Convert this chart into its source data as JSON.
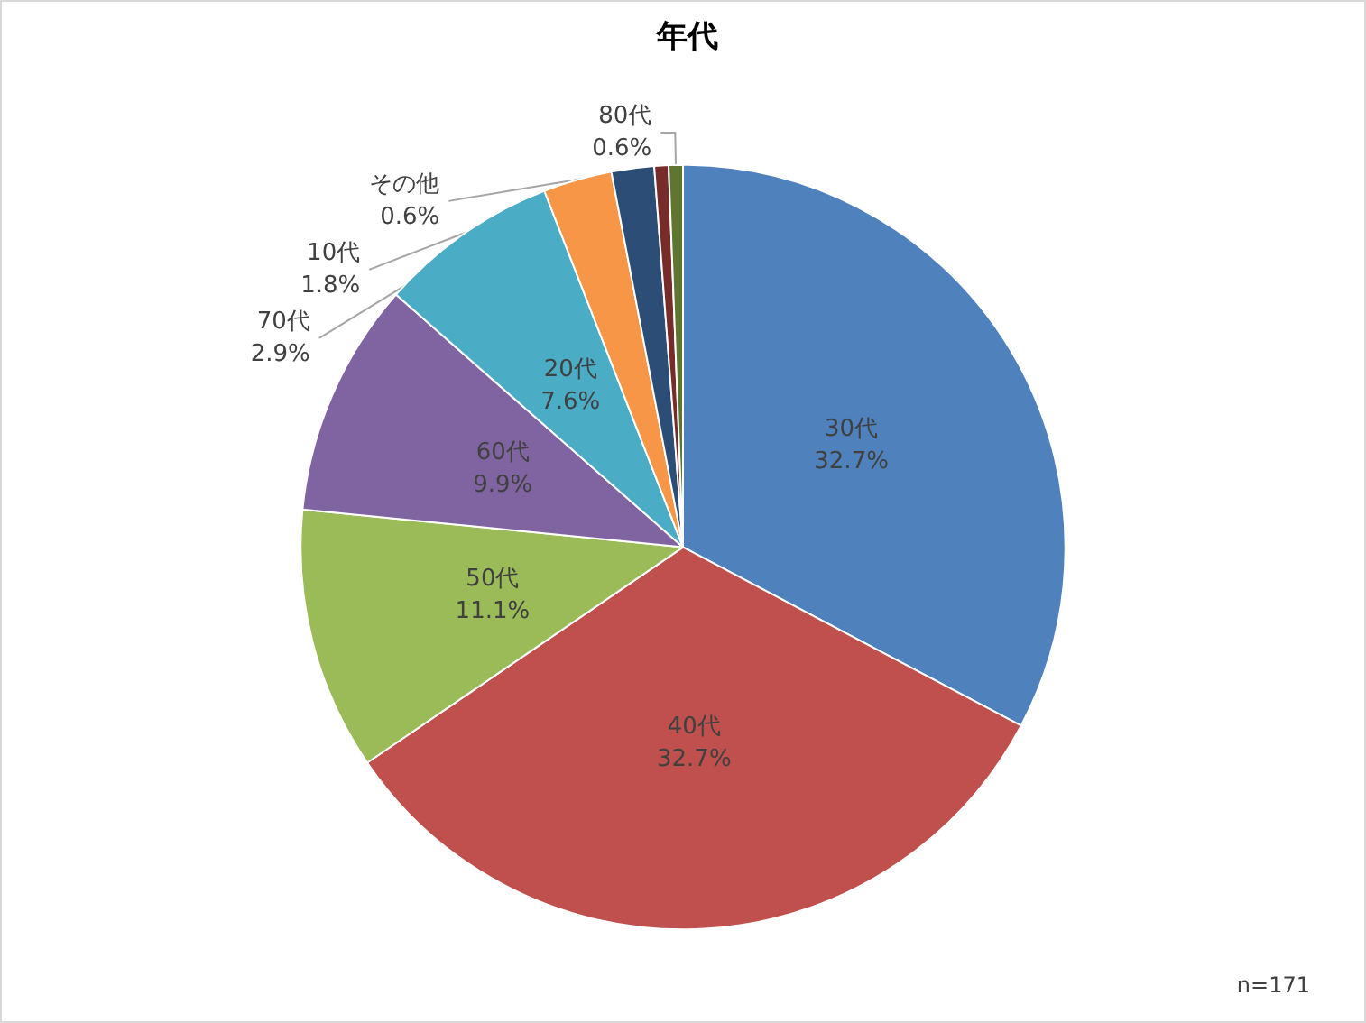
{
  "chart_data": {
    "type": "pie",
    "title": "年代",
    "categories": [
      "30代",
      "40代",
      "50代",
      "60代",
      "20代",
      "70代",
      "10代",
      "その他",
      "80代"
    ],
    "values": [
      32.7,
      32.7,
      11.1,
      9.9,
      7.6,
      2.9,
      1.8,
      0.6,
      0.6
    ],
    "colors": [
      "#4f81bd",
      "#c0504d",
      "#9bbb59",
      "#8064a2",
      "#4bacc6",
      "#f79646",
      "#2c4d75",
      "#772c2a",
      "#5f7530"
    ],
    "value_labels": [
      "32.7%",
      "32.7%",
      "11.1%",
      "9.9%",
      "7.6%",
      "2.9%",
      "1.8%",
      "0.6%",
      "0.6%"
    ],
    "legend": false,
    "annotations": [
      "n=171"
    ]
  }
}
